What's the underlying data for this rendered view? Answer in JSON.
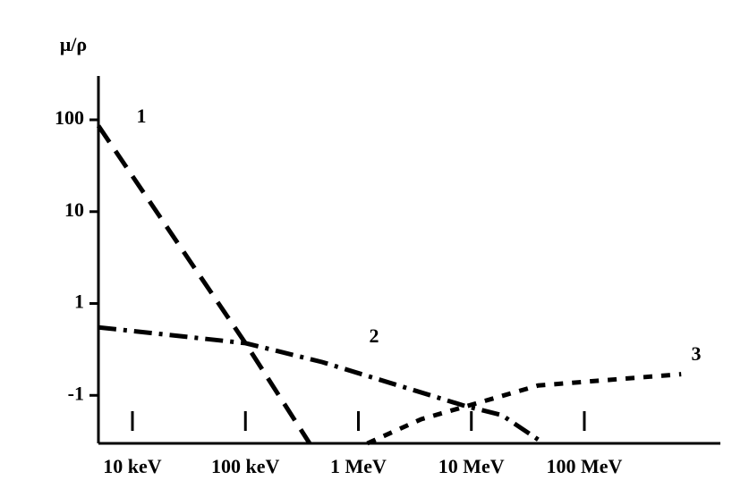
{
  "chart_data": {
    "type": "line",
    "y_label": "μ/ρ",
    "xscale": "log",
    "yscale": "log",
    "grid": false,
    "xlim": [
      5,
      1600000
    ],
    "ylim": [
      0.03,
      300
    ],
    "xticks": [
      {
        "value": 10,
        "label": "10 keV"
      },
      {
        "value": 100,
        "label": "100 keV"
      },
      {
        "value": 1000,
        "label": "1 MeV"
      },
      {
        "value": 10000,
        "label": "10 MeV"
      },
      {
        "value": 100000,
        "label": "100 MeV"
      }
    ],
    "yticks": [
      100,
      10,
      1,
      {
        "value": 0.1,
        "label": "-1"
      }
    ],
    "series": [
      {
        "name": "1",
        "color": "#000000",
        "dash": "dashed",
        "x": [
          5,
          100,
          370
        ],
        "values": [
          86,
          0.37,
          0.03
        ]
      },
      {
        "name": "2",
        "color": "#000000",
        "dash": "dashdot",
        "x": [
          5,
          100,
          480,
          9000,
          18600,
          39000
        ],
        "values": [
          0.55,
          0.37,
          0.23,
          0.076,
          0.061,
          0.033
        ]
      },
      {
        "name": "3",
        "color": "#000000",
        "dash": "dotted",
        "x": [
          1200,
          3600,
          9000,
          39000,
          720000
        ],
        "values": [
          0.03,
          0.055,
          0.076,
          0.128,
          0.17
        ]
      }
    ]
  }
}
